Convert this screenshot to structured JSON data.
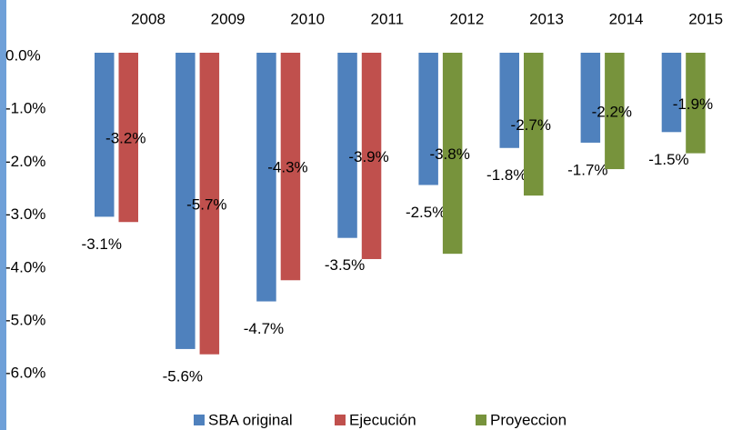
{
  "chart_data": {
    "type": "bar",
    "categories": [
      "2008",
      "2009",
      "2010",
      "2011",
      "2012",
      "2013",
      "2014",
      "2015"
    ],
    "series": [
      {
        "name": "SBA original",
        "color": "#4f81bd",
        "values": [
          -3.1,
          -5.6,
          -4.7,
          -3.5,
          -2.5,
          -1.8,
          -1.7,
          -1.5
        ],
        "value_labels": [
          "-3.1%",
          "-5.6%",
          "-4.7%",
          "-3.5%",
          "-2.5%",
          "-1.8%",
          "-1.7%",
          "-1.5%"
        ]
      },
      {
        "name": "Ejecución",
        "color": "#c0504d",
        "values": [
          -3.2,
          -5.7,
          -4.3,
          -3.9,
          null,
          null,
          null,
          null
        ],
        "value_labels": [
          "-3.2%",
          "-5.7%",
          "-4.3%",
          "-3.9%",
          null,
          null,
          null,
          null
        ]
      },
      {
        "name": "Proyeccion",
        "color": "#77933c",
        "values": [
          null,
          null,
          null,
          null,
          -3.8,
          -2.7,
          -2.2,
          -1.9
        ],
        "value_labels": [
          null,
          null,
          null,
          null,
          "-3.8%",
          "-2.7%",
          "-2.2%",
          "-1.9%"
        ]
      }
    ],
    "ylim": [
      -6,
      0
    ],
    "yticks": [
      {
        "value": 0,
        "label": "0.0%"
      },
      {
        "value": -1,
        "label": "-1.0%"
      },
      {
        "value": -2,
        "label": "-2.0%"
      },
      {
        "value": -3,
        "label": "-3.0%"
      },
      {
        "value": -4,
        "label": "-4.0%"
      },
      {
        "value": -5,
        "label": "-5.0%"
      },
      {
        "value": -6,
        "label": "-6.0%"
      }
    ],
    "legend": "bottom"
  }
}
